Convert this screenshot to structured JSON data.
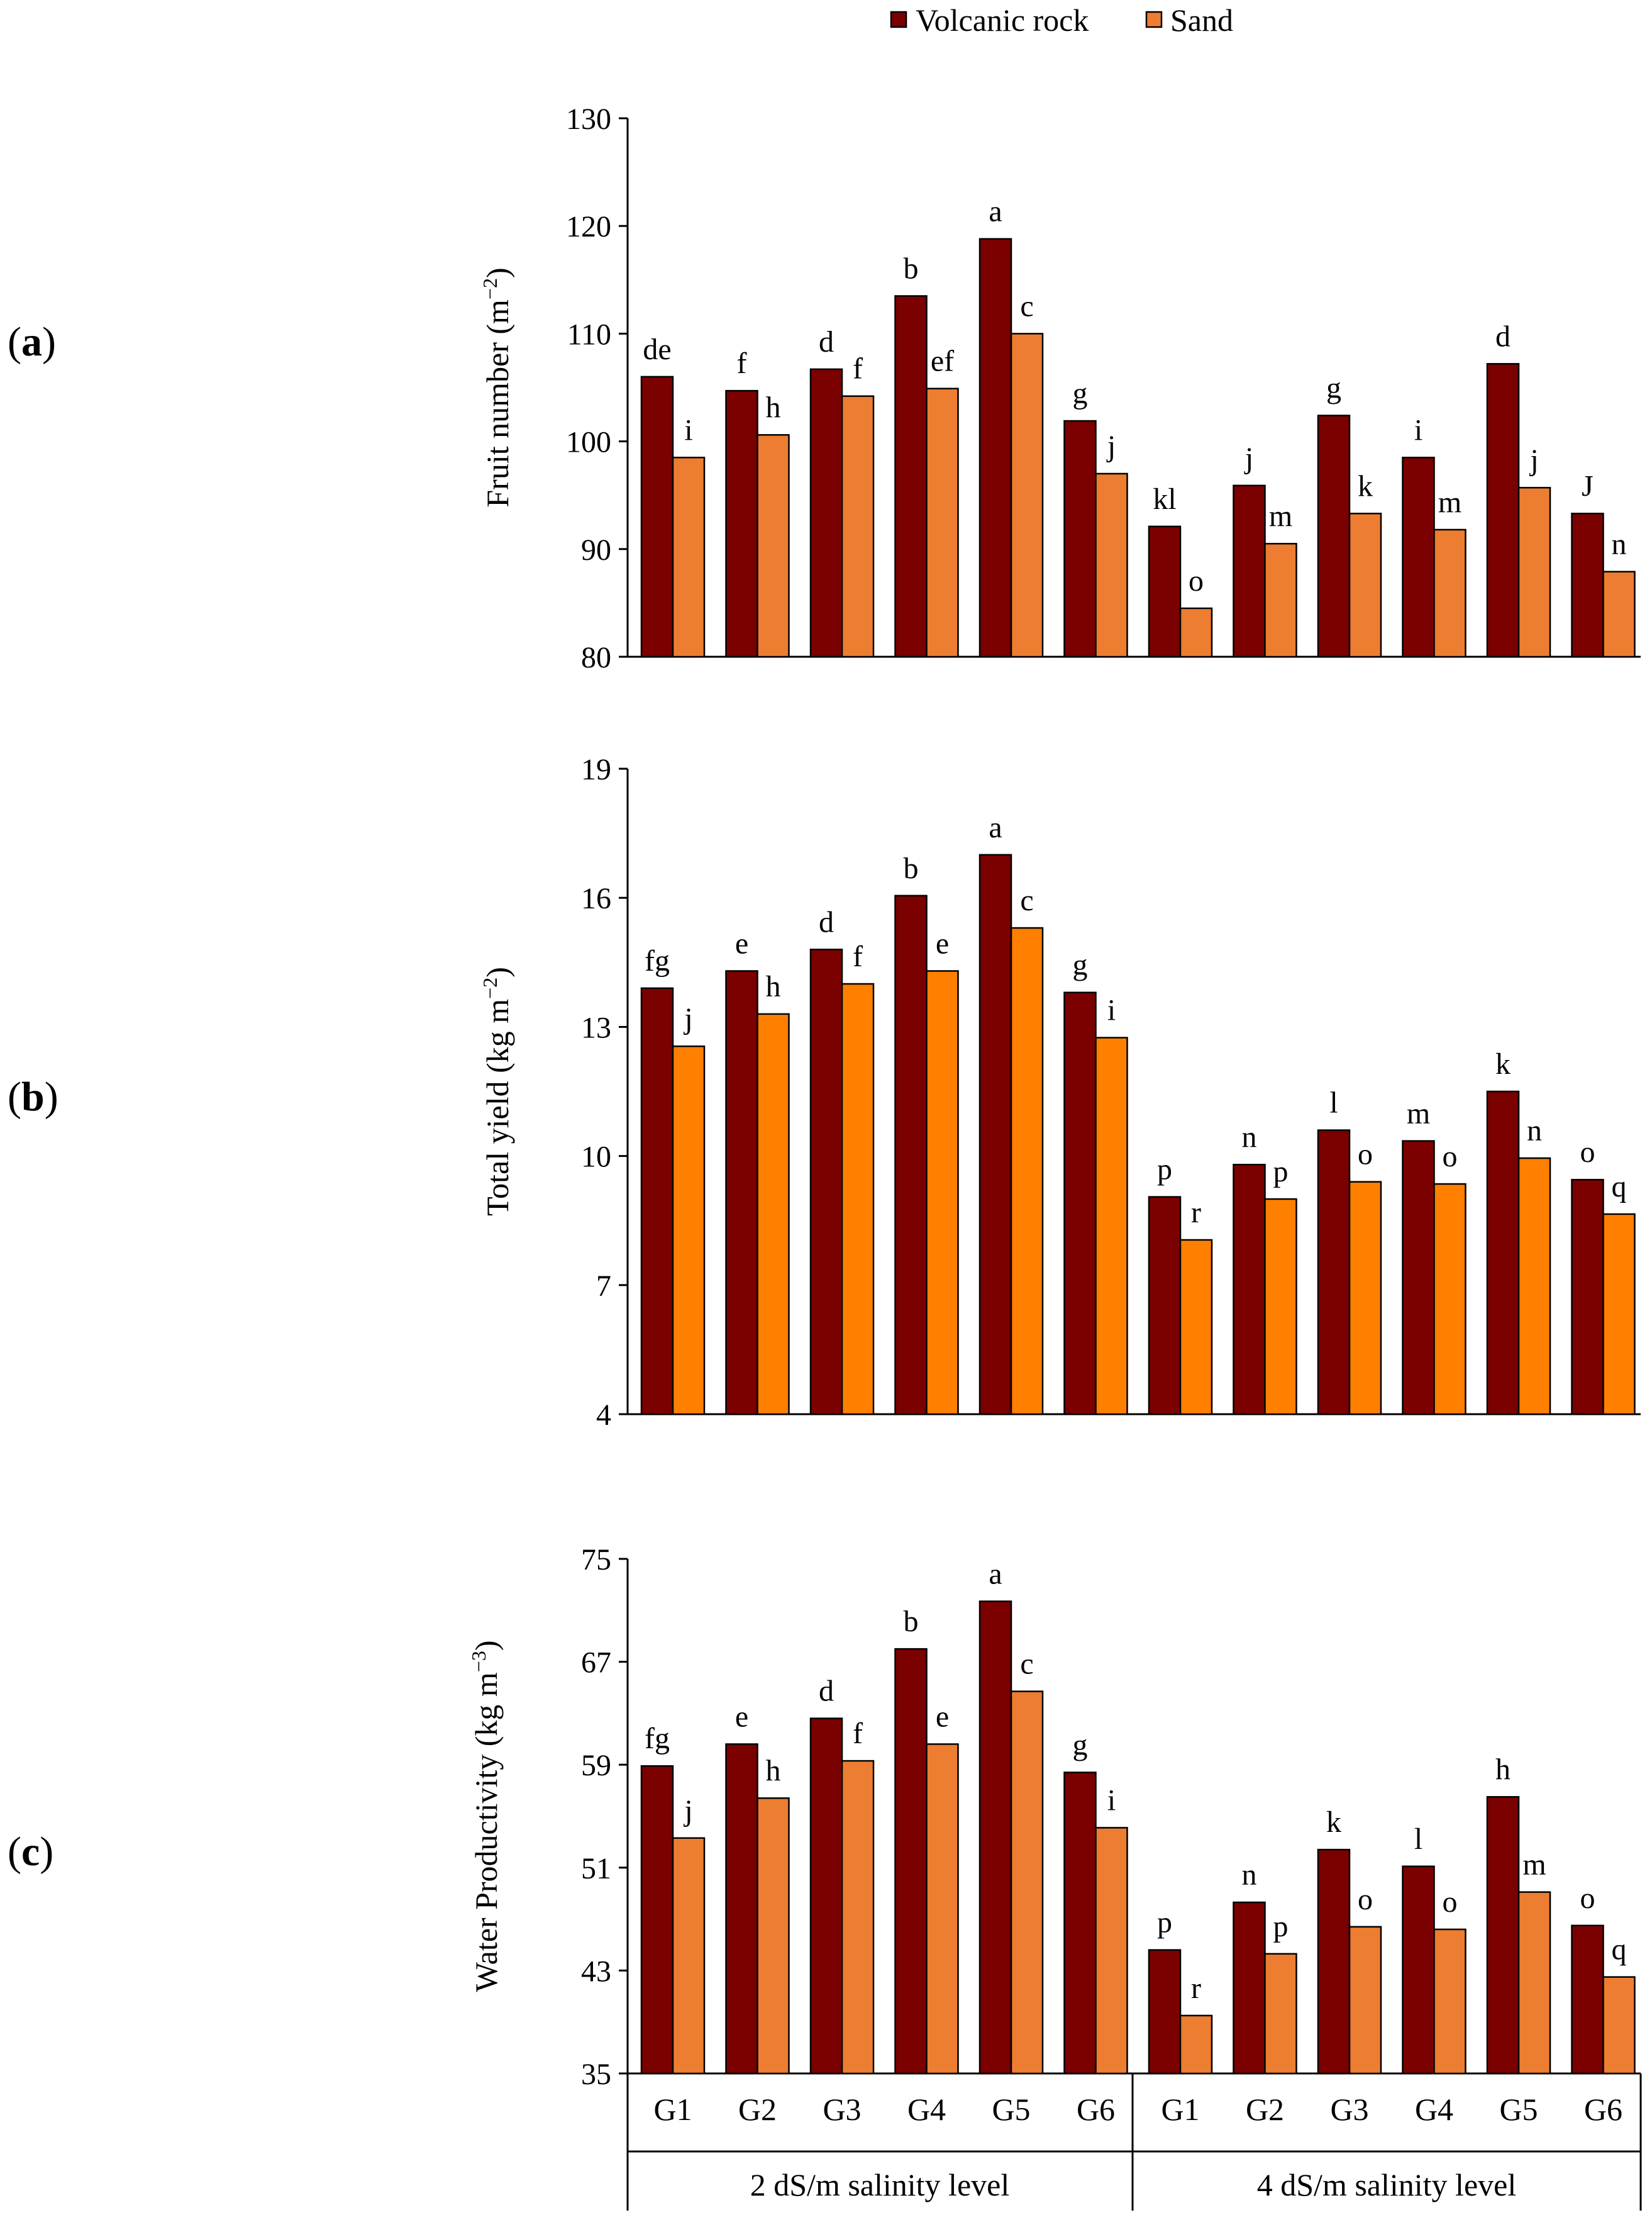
{
  "legend": {
    "items": [
      {
        "label": "Volcanic rock",
        "color": "#7b0000"
      },
      {
        "label": "Sand",
        "color": "#ed7d31"
      }
    ]
  },
  "x_axis": {
    "groups": [
      "G1",
      "G2",
      "G3",
      "G4",
      "G5",
      "G6",
      "G1",
      "G2",
      "G3",
      "G4",
      "G5",
      "G6"
    ],
    "salinity_levels": [
      "2 dS/m salinity level",
      "4 dS/m salinity level"
    ]
  },
  "chart_data": [
    {
      "type": "bar",
      "panel": "(a)",
      "ylabel": "Fruit number (m",
      "ylabel_sup": "−2",
      "ylabel_tail": ")",
      "ylim": [
        80,
        130
      ],
      "yticks": [
        80,
        90,
        100,
        110,
        120,
        130
      ],
      "sand_color": "#ed7d31",
      "categories": [
        "G1",
        "G2",
        "G3",
        "G4",
        "G5",
        "G6",
        "G1",
        "G2",
        "G3",
        "G4",
        "G5",
        "G6"
      ],
      "series": [
        {
          "name": "Volcanic rock",
          "values": [
            106,
            104.7,
            106.7,
            113.5,
            118.8,
            101.9,
            92.1,
            95.9,
            102.4,
            98.5,
            107.2,
            93.3
          ],
          "labels": [
            "de",
            "f",
            "d",
            "b",
            "a",
            "g",
            "kl",
            "j",
            "g",
            "i",
            "d",
            "J"
          ]
        },
        {
          "name": "Sand",
          "values": [
            98.5,
            100.6,
            104.2,
            104.9,
            110,
            97,
            84.5,
            90.5,
            93.3,
            91.8,
            95.7,
            87.9
          ],
          "labels": [
            "i",
            "h",
            "f",
            "ef",
            "c",
            "j",
            "o",
            "m",
            "k",
            "m",
            "j",
            "n"
          ]
        }
      ]
    },
    {
      "type": "bar",
      "panel": "(b)",
      "ylabel": "Total yield (kg m",
      "ylabel_sup": "−2",
      "ylabel_tail": ")",
      "ylim": [
        4,
        19
      ],
      "yticks": [
        4,
        7,
        10,
        13,
        16,
        19
      ],
      "sand_color": "#ff7f00",
      "categories": [
        "G1",
        "G2",
        "G3",
        "G4",
        "G5",
        "G6",
        "G1",
        "G2",
        "G3",
        "G4",
        "G5",
        "G6"
      ],
      "series": [
        {
          "name": "Volcanic rock",
          "values": [
            13.9,
            14.3,
            14.8,
            16.05,
            17,
            13.8,
            9.05,
            9.8,
            10.6,
            10.35,
            11.5,
            9.45
          ],
          "labels": [
            "fg",
            "e",
            "d",
            "b",
            "a",
            "g",
            "p",
            "n",
            "l",
            "m",
            "k",
            "o"
          ]
        },
        {
          "name": "Sand",
          "values": [
            12.55,
            13.3,
            14,
            14.3,
            15.3,
            12.75,
            8.05,
            9,
            9.4,
            9.35,
            9.95,
            8.65
          ],
          "labels": [
            "j",
            "h",
            "f",
            "e",
            "c",
            "i",
            "r",
            "p",
            "o",
            "o",
            "n",
            "q"
          ]
        }
      ]
    },
    {
      "type": "bar",
      "panel": "(c)",
      "ylabel": "Water Productivity (kg m",
      "ylabel_sup": "−3",
      "ylabel_tail": ")",
      "ylim": [
        35,
        75
      ],
      "yticks": [
        35,
        43,
        51,
        59,
        67,
        75
      ],
      "sand_color": "#ed7d31",
      "categories": [
        "G1",
        "G2",
        "G3",
        "G4",
        "G5",
        "G6",
        "G1",
        "G2",
        "G3",
        "G4",
        "G5",
        "G6"
      ],
      "series": [
        {
          "name": "Volcanic rock",
          "values": [
            58.9,
            60.6,
            62.6,
            68,
            71.7,
            58.4,
            44.6,
            48.3,
            52.4,
            51.1,
            56.5,
            46.5
          ],
          "labels": [
            "fg",
            "e",
            "d",
            "b",
            "a",
            "g",
            "p",
            "n",
            "k",
            "l",
            "h",
            "o"
          ]
        },
        {
          "name": "Sand",
          "values": [
            53.3,
            56.4,
            59.3,
            60.6,
            64.7,
            54.1,
            39.5,
            44.3,
            46.4,
            46.2,
            49.1,
            42.5
          ],
          "labels": [
            "j",
            "h",
            "f",
            "e",
            "c",
            "i",
            "r",
            "p",
            "o",
            "o",
            "m",
            "q"
          ]
        }
      ]
    }
  ]
}
